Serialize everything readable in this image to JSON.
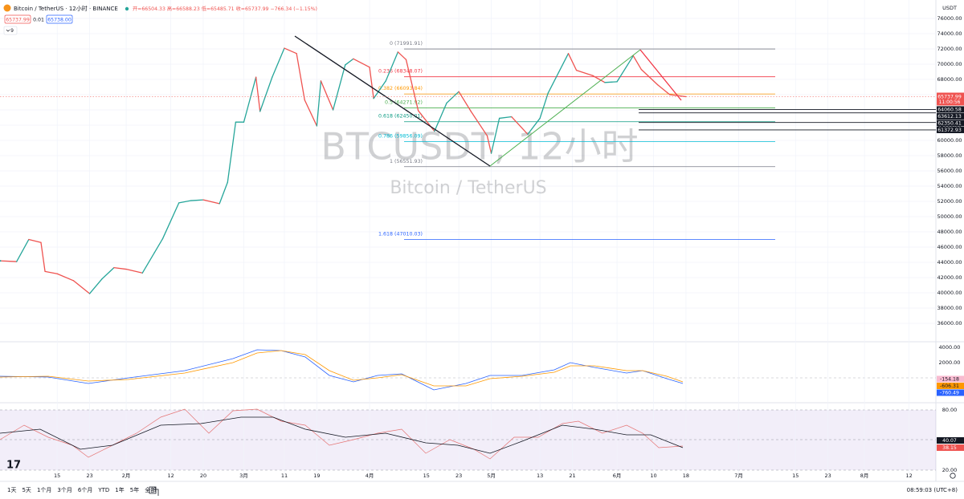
{
  "header": {
    "symbol": "Bitcoin / TetherUS · 12小时 · BINANCE",
    "ohlc": "开=66504.33 高=66588.23 低=65485.71 收=65737.99 −766.34 (−1.15%)",
    "bid": "65737.99",
    "spread": "0.01",
    "ask": "65738.00",
    "indicator_count": "9"
  },
  "watermark": {
    "title": "BTCUSDT, 12小时",
    "subtitle": "Bitcoin / TetherUS"
  },
  "chart_data": {
    "type": "line",
    "y_unit": "USDT",
    "x": [
      0,
      4,
      7,
      10,
      11,
      14,
      18,
      22,
      25,
      28,
      31,
      35,
      38,
      40,
      44,
      47,
      50,
      54,
      56,
      58,
      60,
      63,
      64,
      67,
      70,
      73,
      75,
      78,
      79,
      82,
      85,
      87,
      91,
      92,
      95,
      98,
      100,
      103,
      107,
      110,
      113,
      116,
      120,
      121,
      123,
      126,
      130,
      133,
      135,
      140,
      142,
      146,
      149,
      152,
      156,
      158,
      162,
      165,
      169
    ],
    "values": [
      44200,
      44100,
      47000,
      46600,
      42800,
      42500,
      41600,
      39900,
      41800,
      43300,
      43100,
      42600,
      45300,
      47100,
      51800,
      52100,
      52200,
      51700,
      54500,
      62400,
      62400,
      68300,
      63800,
      68300,
      72100,
      71400,
      65300,
      61900,
      67800,
      64000,
      69900,
      70700,
      69600,
      65500,
      67800,
      71600,
      70600,
      63900,
      61200,
      64900,
      66400,
      63800,
      60600,
      58300,
      62900,
      63100,
      60800,
      62900,
      66200,
      71400,
      69200,
      68500,
      67600,
      67700,
      71100,
      69300,
      67300,
      66000,
      65737.99
    ],
    "up_color": "#26a69a",
    "down_color": "#ef5350",
    "xlim": [
      -0.1,
      230.6
    ],
    "ylim": [
      33684,
      78421
    ],
    "xticks": [
      {
        "value": 14,
        "label": "15"
      },
      {
        "value": 22,
        "label": "23"
      },
      {
        "value": 31,
        "label": "2月"
      },
      {
        "value": 42,
        "label": "12"
      },
      {
        "value": 50,
        "label": "20"
      },
      {
        "value": 60,
        "label": "3月"
      },
      {
        "value": 70,
        "label": "11"
      },
      {
        "value": 78,
        "label": "19"
      },
      {
        "value": 91,
        "label": "4月"
      },
      {
        "value": 105,
        "label": "15"
      },
      {
        "value": 113,
        "label": "23"
      },
      {
        "value": 121,
        "label": "5月"
      },
      {
        "value": 133,
        "label": "13"
      },
      {
        "value": 141,
        "label": "21"
      },
      {
        "value": 152,
        "label": "6月"
      },
      {
        "value": 161,
        "label": "10"
      },
      {
        "value": 169,
        "label": "18"
      },
      {
        "value": 182,
        "label": "7月"
      },
      {
        "value": 196,
        "label": "15"
      },
      {
        "value": 204,
        "label": "23"
      },
      {
        "value": 213,
        "label": "8月"
      },
      {
        "value": 224,
        "label": "12"
      }
    ],
    "yticks": [
      {
        "value": 76000,
        "label": "76000.00"
      },
      {
        "value": 74000,
        "label": "74000.00"
      },
      {
        "value": 72000,
        "label": "72000.00"
      },
      {
        "value": 70000,
        "label": "70000.00"
      },
      {
        "value": 68000,
        "label": "68000.00"
      },
      {
        "value": 66000,
        "label": "66000.00"
      },
      {
        "value": 64000,
        "label": "64000.00"
      },
      {
        "value": 62000,
        "label": "62000.00"
      },
      {
        "value": 60000,
        "label": "60000.00"
      },
      {
        "value": 58000,
        "label": "58000.00"
      },
      {
        "value": 56000,
        "label": "56000.00"
      },
      {
        "value": 54000,
        "label": "54000.00"
      },
      {
        "value": 52000,
        "label": "52000.00"
      },
      {
        "value": 50000,
        "label": "50000.00"
      },
      {
        "value": 48000,
        "label": "48000.00"
      },
      {
        "value": 46000,
        "label": "46000.00"
      },
      {
        "value": 44000,
        "label": "44000.00"
      },
      {
        "value": 42000,
        "label": "42000.00"
      },
      {
        "value": 40000,
        "label": "40000.00"
      },
      {
        "value": 38000,
        "label": "38000.00"
      },
      {
        "value": 36000,
        "label": "36000.00"
      }
    ],
    "grid": true,
    "last_price": 65737.99,
    "countdown": "11:00:56",
    "price_lines": [
      64060.58,
      63612.13,
      62350.41,
      61372.93
    ],
    "fib": [
      {
        "label": "0 (71991.91)",
        "price": 71991.91,
        "color": "#787b86"
      },
      {
        "label": "0.236 (68348.07)",
        "price": 68348.07,
        "color": "#f23645"
      },
      {
        "label": "0.382 (66093.84)",
        "price": 66093.84,
        "color": "#ff9800"
      },
      {
        "label": "0.5 (64271.92)",
        "price": 64271.92,
        "color": "#4caf50"
      },
      {
        "label": "0.618 (62450.01)",
        "price": 62450.01,
        "color": "#089981"
      },
      {
        "label": "0.786 (59856.09)",
        "price": 59856.09,
        "color": "#00bcd4"
      },
      {
        "label": "1 (56551.93)",
        "price": 56551.93,
        "color": "#787b86"
      },
      {
        "label": "1.618 (47010.03)",
        "price": 47010.03,
        "color": "#2962ff"
      }
    ]
  },
  "macd": {
    "yticks": [
      {
        "value": 4000,
        "label": "4000.00"
      },
      {
        "value": 2000,
        "label": "2000.00"
      }
    ],
    "values": [
      -154.18,
      -606.31,
      -760.49
    ],
    "colors": [
      "#f8bbd0",
      "#ff9800",
      "#2962ff"
    ]
  },
  "rsi": {
    "yticks": [
      {
        "value": 80,
        "label": "80.00"
      },
      {
        "value": 20,
        "label": "20.00"
      }
    ],
    "values": [
      40.07,
      38.15
    ],
    "colors": [
      "#131722",
      "#ef5350"
    ]
  },
  "ranges": [
    "1天",
    "5天",
    "1个月",
    "3个月",
    "6个月",
    "YTD",
    "1年",
    "5年",
    "全部"
  ],
  "clock": "08:59:03 (UTC+8)"
}
